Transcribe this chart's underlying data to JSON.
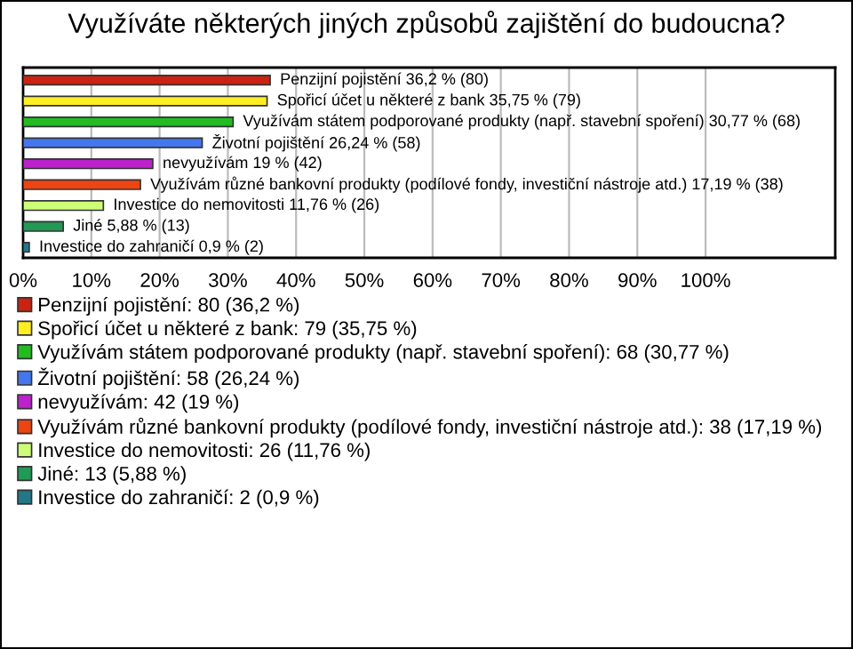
{
  "chart_data": {
    "type": "bar",
    "orientation": "horizontal",
    "title": "Využíváte některých jiných způsobů zajištění do budoucna?",
    "categories": [
      null,
      null,
      null,
      null,
      null,
      null,
      null,
      null,
      null
    ],
    "series": [
      {
        "name": "Penzijní pojistění: 80 (36,2 %)",
        "color": "#cc2211",
        "values": [
          36.2,
          null,
          null,
          null,
          null,
          null,
          null,
          null,
          null
        ],
        "value_labels": [
          "Penzijní pojistění 36,2 % (80)",
          null,
          null,
          null,
          null,
          null,
          null,
          null,
          null
        ]
      },
      {
        "name": "Spořicí účet u některé z bank: 79 (35,75 %)",
        "color": "#ffee22",
        "values": [
          null,
          35.75,
          null,
          null,
          null,
          null,
          null,
          null,
          null
        ],
        "value_labels": [
          null,
          "Spořicí účet u některé z bank 35,75 % (79)",
          null,
          null,
          null,
          null,
          null,
          null,
          null
        ]
      },
      {
        "name": "Využívám státem podporované produkty (např. stavební spoření): 68 (30,77 %)",
        "color": "#22bb22",
        "values": [
          null,
          null,
          30.77,
          null,
          null,
          null,
          null,
          null,
          null
        ],
        "value_labels": [
          null,
          null,
          "Využívám státem podporované produkty (např. stavební spoření) 30,77 % (68)",
          null,
          null,
          null,
          null,
          null,
          null
        ]
      },
      {
        "name": "Životní pojištění: 58 (26,24 %)",
        "color": "#4477ee",
        "values": [
          null,
          null,
          null,
          26.24,
          null,
          null,
          null,
          null,
          null
        ],
        "value_labels": [
          null,
          null,
          null,
          "Životní pojištění 26,24 % (58)",
          null,
          null,
          null,
          null,
          null
        ]
      },
      {
        "name": "nevyužívám: 42 (19 %)",
        "color": "#bb22cc",
        "values": [
          null,
          null,
          null,
          null,
          19,
          null,
          null,
          null,
          null
        ],
        "value_labels": [
          null,
          null,
          null,
          null,
          "nevyužívám 19 % (42)",
          null,
          null,
          null,
          null
        ]
      },
      {
        "name": "Využívám různé bankovní produkty (podílové fondy, investiční nástroje atd.): 38 (17,19 %)",
        "color": "#ee4411",
        "values": [
          null,
          null,
          null,
          null,
          null,
          17.19,
          null,
          null,
          null
        ],
        "value_labels": [
          null,
          null,
          null,
          null,
          null,
          "Využívám různé bankovní produkty (podílové fondy, investiční nástroje atd.) 17,19 % (38)",
          null,
          null,
          null
        ]
      },
      {
        "name": "Investice do nemovitosti: 26 (11,76 %)",
        "color": "#ccff77",
        "values": [
          null,
          null,
          null,
          null,
          null,
          null,
          11.76,
          null,
          null
        ],
        "value_labels": [
          null,
          null,
          null,
          null,
          null,
          null,
          "Investice do nemovitosti 11,76 % (26)",
          null,
          null
        ]
      },
      {
        "name": "Jiné: 13 (5,88 %)",
        "color": "#229955",
        "values": [
          null,
          null,
          null,
          null,
          null,
          null,
          null,
          5.88,
          null
        ],
        "value_labels": [
          null,
          null,
          null,
          null,
          null,
          null,
          null,
          "Jiné 5,88 % (13)",
          null
        ]
      },
      {
        "name": "Investice do zahraničí: 2 (0,9 %)",
        "color": "#227788",
        "values": [
          null,
          null,
          null,
          null,
          null,
          null,
          null,
          null,
          0.9
        ],
        "value_labels": [
          null,
          null,
          null,
          null,
          null,
          null,
          null,
          null,
          "Investice do zahraničí 0,9 % (2)"
        ]
      }
    ],
    "xlim": [
      0,
      119
    ],
    "xticks": [
      {
        "value": 0,
        "label": "0%"
      },
      {
        "value": 10,
        "label": "10%"
      },
      {
        "value": 20,
        "label": "20%"
      },
      {
        "value": 30,
        "label": "30%"
      },
      {
        "value": 40,
        "label": "40%"
      },
      {
        "value": 50,
        "label": "50%"
      },
      {
        "value": 60,
        "label": "60%"
      },
      {
        "value": 70,
        "label": "70%"
      },
      {
        "value": 80,
        "label": "80%"
      },
      {
        "value": 90,
        "label": "90%"
      },
      {
        "value": 100,
        "label": "100%"
      }
    ],
    "grid": "x",
    "legend": "bottom"
  }
}
